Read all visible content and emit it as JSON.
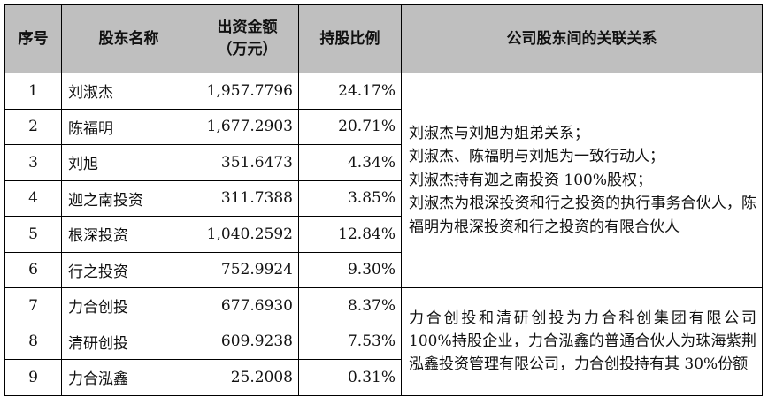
{
  "headers": {
    "seq": "序号",
    "name": "股东名称",
    "capital_line1": "出资金额",
    "capital_line2": "（万元）",
    "ratio": "持股比例",
    "relation": "公司股东间的关联关系"
  },
  "rows": [
    {
      "seq": "1",
      "name": "刘淑杰",
      "capital": "1,957.7796",
      "ratio": "24.17%"
    },
    {
      "seq": "2",
      "name": "陈福明",
      "capital": "1,677.2903",
      "ratio": "20.71%"
    },
    {
      "seq": "3",
      "name": "刘旭",
      "capital": "351.6473",
      "ratio": "4.34%"
    },
    {
      "seq": "4",
      "name": "迦之南投资",
      "capital": "311.7388",
      "ratio": "3.85%"
    },
    {
      "seq": "5",
      "name": "根深投资",
      "capital": "1,040.2592",
      "ratio": "12.84%"
    },
    {
      "seq": "6",
      "name": "行之投资",
      "capital": "752.9924",
      "ratio": "9.30%"
    },
    {
      "seq": "7",
      "name": "力合创投",
      "capital": "677.6930",
      "ratio": "8.37%"
    },
    {
      "seq": "8",
      "name": "清研创投",
      "capital": "609.9238",
      "ratio": "7.53%"
    },
    {
      "seq": "9",
      "name": "力合泓鑫",
      "capital": "25.2008",
      "ratio": "0.31%"
    }
  ],
  "relations": {
    "group1": {
      "line1": "刘淑杰与刘旭为姐弟关系；",
      "line2": "刘淑杰、陈福明与刘旭为一致行动人；",
      "line3": "刘淑杰持有迦之南投资 100%股权；",
      "line4": "刘淑杰为根深投资和行之投资的执行事务合伙人，陈福明为根深投资和行之投资的有限合伙人"
    },
    "group2": {
      "text": "力合创投和清研创投为力合科创集团有限公司 100%持股企业，力合泓鑫的普通合伙人为珠海紫荆泓鑫投资管理有限公司，力合创投持有其 30%份额"
    }
  }
}
